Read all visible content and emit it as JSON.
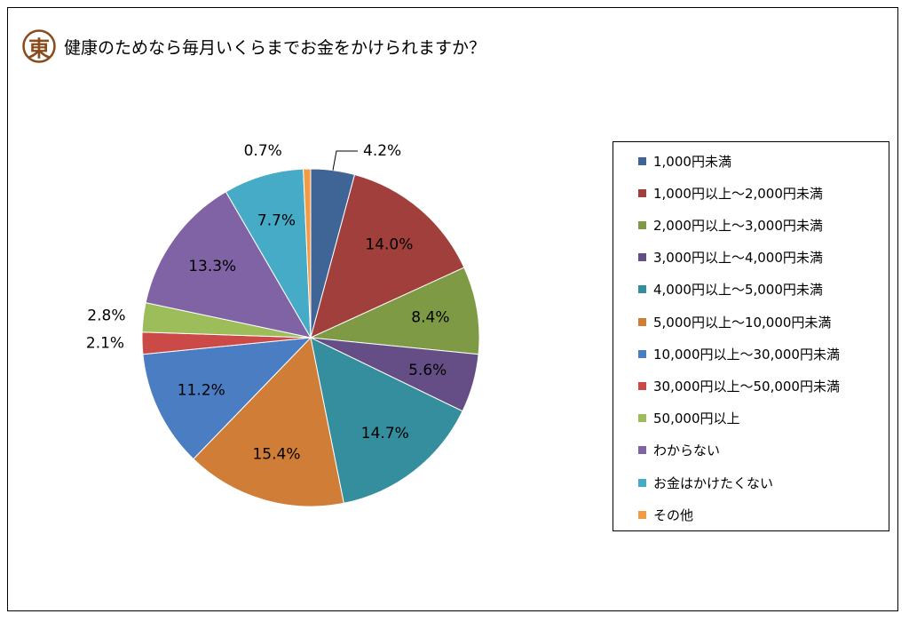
{
  "title": "健康のためなら毎月いくらまでお金をかけられますか？",
  "logo": {
    "char": "東",
    "color": "#8a4a1c"
  },
  "chart_data": {
    "type": "pie",
    "title": "健康のためなら毎月いくらまでお金をかけられますか？",
    "legend_position": "right",
    "slices": [
      {
        "label": "1,000円未満",
        "value": 4.2,
        "value_label": "4.2%",
        "color": "#3f6597"
      },
      {
        "label": "1,000円以上～2,000円未満",
        "value": 14.0,
        "value_label": "14.0%",
        "color": "#a13f3c"
      },
      {
        "label": "2,000円以上～3,000円未満",
        "value": 8.4,
        "value_label": "8.4%",
        "color": "#7e9a45"
      },
      {
        "label": "3,000円以上～4,000円未満",
        "value": 5.6,
        "value_label": "5.6%",
        "color": "#654e86"
      },
      {
        "label": "4,000円以上～5,000円未満",
        "value": 14.7,
        "value_label": "14.7%",
        "color": "#358e9e"
      },
      {
        "label": "5,000円以上～10,000円未満",
        "value": 15.4,
        "value_label": "15.4%",
        "color": "#d07d38"
      },
      {
        "label": "10,000円以上～30,000円未満",
        "value": 11.2,
        "value_label": "11.2%",
        "color": "#4b7dc3"
      },
      {
        "label": "30,000円以上～50,000円未満",
        "value": 2.1,
        "value_label": "2.1%",
        "color": "#cb4a47"
      },
      {
        "label": "50,000円以上",
        "value": 2.8,
        "value_label": "2.8%",
        "color": "#9dbd5b"
      },
      {
        "label": "わからない",
        "value": 13.3,
        "value_label": "13.3%",
        "color": "#8063a4"
      },
      {
        "label": "お金はかけたくない",
        "value": 7.7,
        "value_label": "7.7%",
        "color": "#45abc6"
      },
      {
        "label": "その他",
        "value": 0.7,
        "value_label": "0.7%",
        "color": "#f39a43"
      }
    ]
  }
}
